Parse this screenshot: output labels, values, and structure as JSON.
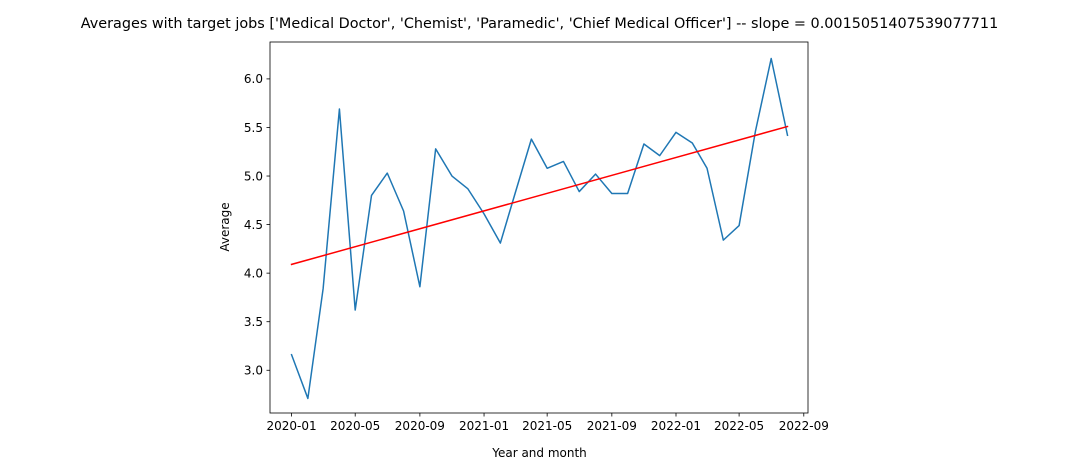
{
  "chart_data": {
    "type": "line",
    "title": "Averages with target jobs ['Medical Doctor', 'Chemist', 'Paramedic', 'Chief Medical Officer'] -- slope = 0.0015051407539077711",
    "xlabel": "Year and month",
    "ylabel": "Average",
    "x_ticks": [
      "2020-01",
      "2020-05",
      "2020-09",
      "2021-01",
      "2021-05",
      "2021-09",
      "2022-01",
      "2022-05",
      "2022-09"
    ],
    "y_ticks": [
      "3.0",
      "3.5",
      "4.0",
      "4.5",
      "5.0",
      "5.5",
      "6.0"
    ],
    "xlim": [
      "2019-11-21",
      "2022-09-09"
    ],
    "ylim": [
      2.56,
      6.38
    ],
    "grid": false,
    "series": [
      {
        "color": "#1f77b4",
        "x": [
          "2020-01-01",
          "2020-02-01",
          "2020-03-01",
          "2020-04-01",
          "2020-05-01",
          "2020-06-01",
          "2020-07-01",
          "2020-08-01",
          "2020-09-01",
          "2020-10-01",
          "2020-11-01",
          "2020-12-01",
          "2021-01-01",
          "2021-02-01",
          "2021-03-01",
          "2021-04-01",
          "2021-05-01",
          "2021-06-01",
          "2021-07-01",
          "2021-08-01",
          "2021-09-01",
          "2021-10-01",
          "2021-11-01",
          "2021-12-01",
          "2022-01-01",
          "2022-02-01",
          "2022-03-01",
          "2022-04-01",
          "2022-05-01",
          "2022-06-01",
          "2022-07-01",
          "2022-08-01"
        ],
        "y": [
          3.16,
          2.71,
          3.84,
          5.69,
          3.62,
          4.8,
          5.03,
          4.64,
          3.86,
          5.28,
          5.0,
          4.87,
          4.61,
          4.31,
          4.82,
          5.38,
          5.08,
          5.15,
          4.84,
          5.02,
          4.82,
          4.82,
          5.33,
          5.21,
          5.45,
          5.34,
          5.08,
          4.34,
          4.49,
          5.46,
          6.21,
          5.42
        ]
      },
      {
        "color": "#ff0000",
        "x": [
          "2020-01-01",
          "2022-08-01"
        ],
        "y": [
          4.09,
          5.51
        ]
      }
    ]
  }
}
